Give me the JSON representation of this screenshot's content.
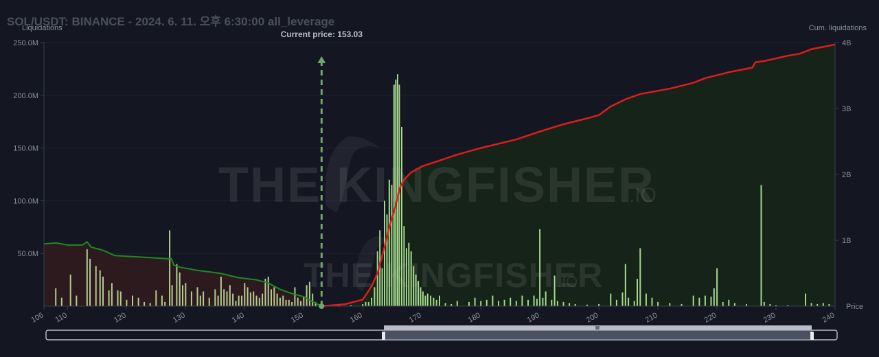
{
  "header": {
    "title": "SOL/USDT: BINANCE - 2024. 6. 11. 오후 6:30:00 all_leverage"
  },
  "watermark": {
    "main_text": "THE KINGFISHER",
    "suffix": ".IO"
  },
  "colors": {
    "background": "#141722",
    "short_bars": "#b5cc8e",
    "long_bars": "#a4d98c",
    "cum_left_line": "#1e8a1e",
    "cum_right_line": "#e01c1c",
    "cum_left_fill": "#2d1a20",
    "cum_right_fill": "#152419",
    "current_price_line": "#6fa76a"
  },
  "chart_data": {
    "type": "bar",
    "title": "SOL/USDT: BINANCE - 2024. 6. 11. 오후 6:30:00 all_leverage",
    "xlabel": "Price",
    "ylabel": "Liquidations",
    "y2label": "Cum. liquidations",
    "xlim": [
      106,
      240
    ],
    "ylim": [
      0,
      250000000
    ],
    "y2lim": [
      0,
      4000000000
    ],
    "x_ticks": [
      106,
      110,
      120,
      130,
      140,
      150,
      160,
      170,
      180,
      190,
      200,
      210,
      220,
      230,
      240
    ],
    "y_ticks": [
      {
        "value": 50000000,
        "label": "50.0M"
      },
      {
        "value": 100000000,
        "label": "100.0M"
      },
      {
        "value": 150000000,
        "label": "150.0M"
      },
      {
        "value": 200000000,
        "label": "200.0M"
      },
      {
        "value": 250000000,
        "label": "250.0M"
      }
    ],
    "y2_ticks": [
      {
        "value": 1000000000,
        "label": "1B"
      },
      {
        "value": 2000000000,
        "label": "2B"
      },
      {
        "value": 3000000000,
        "label": "3B"
      },
      {
        "value": 4000000000,
        "label": "4B"
      }
    ],
    "current_price": 153.03,
    "current_price_label": "Current price: 153.03",
    "liquidations": [
      [
        108,
        17000000
      ],
      [
        109,
        8000000
      ],
      [
        110.5,
        30000000
      ],
      [
        111.5,
        10000000
      ],
      [
        113.3,
        54000000
      ],
      [
        113.8,
        45000000
      ],
      [
        114.8,
        38000000
      ],
      [
        115.5,
        34000000
      ],
      [
        116,
        28000000
      ],
      [
        117,
        15000000
      ],
      [
        117.5,
        22000000
      ],
      [
        118.5,
        15000000
      ],
      [
        119,
        14000000
      ],
      [
        120,
        6000000
      ],
      [
        121,
        10000000
      ],
      [
        122,
        8000000
      ],
      [
        123,
        4000000
      ],
      [
        124,
        3000000
      ],
      [
        125,
        15000000
      ],
      [
        126,
        10000000
      ],
      [
        126.5,
        4000000
      ],
      [
        127.3,
        72000000
      ],
      [
        127.7,
        20000000
      ],
      [
        128.5,
        40000000
      ],
      [
        129,
        32000000
      ],
      [
        129.5,
        20000000
      ],
      [
        130,
        22000000
      ],
      [
        131,
        14000000
      ],
      [
        132,
        18000000
      ],
      [
        132.5,
        10000000
      ],
      [
        133,
        14000000
      ],
      [
        134,
        8000000
      ],
      [
        135,
        16000000
      ],
      [
        135.5,
        10000000
      ],
      [
        136,
        28000000
      ],
      [
        136.5,
        16000000
      ],
      [
        137,
        14000000
      ],
      [
        137.5,
        20000000
      ],
      [
        138,
        12000000
      ],
      [
        138.5,
        5000000
      ],
      [
        139,
        10000000
      ],
      [
        139.5,
        10000000
      ],
      [
        140,
        22000000
      ],
      [
        140.5,
        18000000
      ],
      [
        141,
        13000000
      ],
      [
        141.5,
        14000000
      ],
      [
        142,
        10000000
      ],
      [
        142.5,
        8000000
      ],
      [
        143,
        12000000
      ],
      [
        143.5,
        26000000
      ],
      [
        144,
        28000000
      ],
      [
        144.5,
        16000000
      ],
      [
        145,
        18000000
      ],
      [
        145.5,
        12000000
      ],
      [
        146,
        8000000
      ],
      [
        146.5,
        10000000
      ],
      [
        147,
        6000000
      ],
      [
        147.5,
        6000000
      ],
      [
        148,
        4000000
      ],
      [
        148.5,
        18000000
      ],
      [
        149,
        8000000
      ],
      [
        149.5,
        5000000
      ],
      [
        150,
        9000000
      ],
      [
        150.5,
        20000000
      ],
      [
        151,
        23000000
      ],
      [
        151.5,
        12000000
      ],
      [
        152,
        4000000
      ],
      [
        154,
        1000000
      ],
      [
        156,
        1000000
      ],
      [
        158,
        1000000
      ],
      [
        160,
        2000000
      ],
      [
        160.5,
        4000000
      ],
      [
        161,
        4000000
      ],
      [
        161.5,
        8000000
      ],
      [
        162,
        18000000
      ],
      [
        162.5,
        52000000
      ],
      [
        162.9,
        72000000
      ],
      [
        163.3,
        36000000
      ],
      [
        163.7,
        100000000
      ],
      [
        164.1,
        87000000
      ],
      [
        164.5,
        120000000
      ],
      [
        164.9,
        115000000
      ],
      [
        165.3,
        210000000
      ],
      [
        165.6,
        215000000
      ],
      [
        165.9,
        220000000
      ],
      [
        166.2,
        210000000
      ],
      [
        166.6,
        170000000
      ],
      [
        167,
        76000000
      ],
      [
        167.4,
        55000000
      ],
      [
        167.8,
        60000000
      ],
      [
        168.2,
        52000000
      ],
      [
        168.6,
        38000000
      ],
      [
        169,
        30000000
      ],
      [
        169.4,
        24000000
      ],
      [
        169.8,
        18000000
      ],
      [
        170.2,
        14000000
      ],
      [
        170.6,
        10000000
      ],
      [
        171,
        12000000
      ],
      [
        171.5,
        10000000
      ],
      [
        172,
        8000000
      ],
      [
        172.5,
        6000000
      ],
      [
        173,
        10000000
      ],
      [
        174,
        3000000
      ],
      [
        175,
        2000000
      ],
      [
        176,
        5000000
      ],
      [
        178,
        4000000
      ],
      [
        179,
        8000000
      ],
      [
        180,
        5000000
      ],
      [
        181,
        6000000
      ],
      [
        182,
        10000000
      ],
      [
        183,
        5000000
      ],
      [
        184,
        6000000
      ],
      [
        185,
        8000000
      ],
      [
        186,
        5000000
      ],
      [
        187,
        10000000
      ],
      [
        188,
        6000000
      ],
      [
        189,
        10000000
      ],
      [
        189.5,
        7000000
      ],
      [
        190,
        73000000
      ],
      [
        190.5,
        8000000
      ],
      [
        191,
        14000000
      ],
      [
        192,
        6000000
      ],
      [
        192.5,
        29000000
      ],
      [
        193,
        5000000
      ],
      [
        194,
        4000000
      ],
      [
        195,
        3000000
      ],
      [
        196,
        2000000
      ],
      [
        198,
        1500000
      ],
      [
        200,
        2000000
      ],
      [
        202,
        12000000
      ],
      [
        203,
        6000000
      ],
      [
        204,
        13000000
      ],
      [
        204.5,
        40000000
      ],
      [
        205,
        8000000
      ],
      [
        206,
        5000000
      ],
      [
        206.5,
        26000000
      ],
      [
        207,
        55000000
      ],
      [
        208,
        12000000
      ],
      [
        209,
        8000000
      ],
      [
        210,
        4000000
      ],
      [
        212,
        3000000
      ],
      [
        214,
        2000000
      ],
      [
        216,
        10000000
      ],
      [
        217,
        8000000
      ],
      [
        218,
        10000000
      ],
      [
        219,
        9000000
      ],
      [
        219.5,
        17000000
      ],
      [
        220,
        36000000
      ],
      [
        221,
        4000000
      ],
      [
        222,
        6000000
      ],
      [
        223,
        3000000
      ],
      [
        225,
        2000000
      ],
      [
        227.5,
        115000000
      ],
      [
        228,
        4000000
      ],
      [
        229,
        2000000
      ],
      [
        230,
        1000000
      ],
      [
        232,
        1000000
      ],
      [
        235,
        12000000
      ],
      [
        236,
        3000000
      ],
      [
        237,
        2000000
      ],
      [
        238,
        3000000
      ],
      [
        239,
        2000000
      ]
    ],
    "cum_short": [
      [
        106,
        59000000
      ],
      [
        108,
        60000000
      ],
      [
        110,
        58000000
      ],
      [
        112.5,
        58000000
      ],
      [
        113.3,
        61000000
      ],
      [
        114,
        56000000
      ],
      [
        116,
        53000000
      ],
      [
        118,
        48000000
      ],
      [
        121,
        47000000
      ],
      [
        124,
        46000000
      ],
      [
        127,
        45000000
      ],
      [
        127.6,
        45000000
      ],
      [
        128,
        39000000
      ],
      [
        129,
        37000000
      ],
      [
        132,
        34000000
      ],
      [
        136,
        31000000
      ],
      [
        139,
        27000000
      ],
      [
        142,
        25000000
      ],
      [
        144,
        22000000
      ],
      [
        146,
        16000000
      ],
      [
        148,
        12000000
      ],
      [
        150,
        9000000
      ],
      [
        152,
        3000000
      ],
      [
        153,
        0
      ]
    ],
    "cum_long": [
      [
        153,
        0
      ],
      [
        157,
        30000000
      ],
      [
        160,
        100000000
      ],
      [
        161.5,
        300000000
      ],
      [
        162.5,
        500000000
      ],
      [
        163.7,
        900000000
      ],
      [
        164.5,
        1200000000
      ],
      [
        165.5,
        1500000000
      ],
      [
        166.3,
        1800000000
      ],
      [
        167,
        1920000000
      ],
      [
        168.2,
        2030000000
      ],
      [
        170,
        2120000000
      ],
      [
        172,
        2180000000
      ],
      [
        174,
        2240000000
      ],
      [
        176,
        2300000000
      ],
      [
        180,
        2400000000
      ],
      [
        186,
        2530000000
      ],
      [
        190,
        2650000000
      ],
      [
        194,
        2760000000
      ],
      [
        198,
        2850000000
      ],
      [
        200,
        2900000000
      ],
      [
        202,
        3030000000
      ],
      [
        204.5,
        3140000000
      ],
      [
        207,
        3220000000
      ],
      [
        212,
        3300000000
      ],
      [
        216,
        3390000000
      ],
      [
        218,
        3460000000
      ],
      [
        222,
        3550000000
      ],
      [
        226,
        3620000000
      ],
      [
        226.5,
        3700000000
      ],
      [
        228,
        3720000000
      ],
      [
        232,
        3800000000
      ],
      [
        234,
        3830000000
      ],
      [
        236,
        3900000000
      ],
      [
        240,
        3970000000
      ]
    ]
  },
  "navigator": {
    "handle_glyph": "III"
  }
}
